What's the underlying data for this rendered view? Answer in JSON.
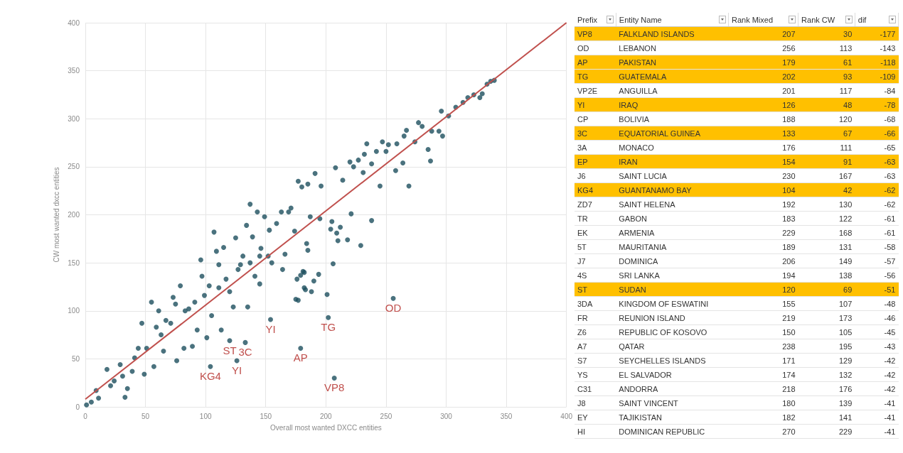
{
  "chart_data": [
    {
      "type": "scatter",
      "xlabel": "Overall most wanted DXCC entities",
      "ylabel": "CW most wanted dxcc entities",
      "xlim": [
        0,
        400
      ],
      "ylim": [
        0,
        400
      ],
      "xticks": [
        0,
        50,
        100,
        150,
        200,
        250,
        300,
        350,
        400
      ],
      "yticks": [
        0,
        50,
        100,
        150,
        200,
        250,
        300,
        350,
        400
      ],
      "grid": true,
      "series": [
        {
          "color": "#1d4f5e",
          "marker": "circle",
          "x": [
            1,
            5,
            11,
            18,
            24,
            29,
            33,
            35,
            39,
            44,
            47,
            49,
            55,
            57,
            59,
            61,
            65,
            67,
            73,
            75,
            76,
            79,
            82,
            86,
            89,
            93,
            96,
            97,
            101,
            103,
            105,
            107,
            109,
            111,
            113,
            115,
            120,
            123,
            125,
            129,
            131,
            134,
            135,
            139,
            141,
            145,
            146,
            152,
            153,
            155,
            159,
            163,
            164,
            166,
            169,
            174,
            175,
            176,
            181,
            182,
            9,
            21,
            31,
            41,
            51,
            63,
            71,
            83,
            91,
            99,
            111,
            117,
            127,
            137,
            145,
            137,
            143,
            149,
            177,
            180,
            185,
            171,
            191,
            196,
            208,
            205,
            214,
            220,
            223,
            227,
            231,
            234,
            232,
            238,
            242,
            247,
            245,
            250,
            252,
            259,
            258,
            265,
            267,
            269,
            264,
            274,
            277,
            280,
            285,
            287,
            288,
            294,
            296,
            297,
            302,
            308,
            314,
            318,
            323,
            328,
            330,
            334,
            337,
            340,
            184,
            185,
            179,
            182,
            190,
            194,
            183,
            188,
            177,
            201,
            206,
            204,
            209,
            212,
            210,
            218,
            221,
            229,
            238,
            187,
            195,
            104,
            120,
            126,
            133,
            154,
            179,
            202,
            207,
            256
          ],
          "values": [
            2,
            5,
            9,
            39,
            27,
            44,
            10,
            19,
            37,
            61,
            87,
            34,
            109,
            42,
            83,
            100,
            58,
            90,
            114,
            107,
            48,
            126,
            61,
            102,
            63,
            80,
            153,
            136,
            72,
            126,
            95,
            182,
            162,
            148,
            80,
            166,
            120,
            104,
            176,
            148,
            157,
            189,
            104,
            177,
            136,
            128,
            165,
            157,
            184,
            150,
            191,
            203,
            143,
            159,
            203,
            183,
            112,
            133,
            141,
            124,
            17,
            22,
            32,
            51,
            61,
            75,
            87,
            100,
            109,
            116,
            124,
            133,
            143,
            150,
            157,
            211,
            203,
            198,
            235,
            229,
            232,
            207,
            243,
            230,
            249,
            193,
            236,
            255,
            250,
            257,
            244,
            274,
            263,
            253,
            266,
            276,
            230,
            266,
            273,
            274,
            246,
            282,
            288,
            230,
            254,
            276,
            296,
            292,
            268,
            256,
            287,
            287,
            308,
            282,
            303,
            312,
            317,
            322,
            325,
            322,
            326,
            336,
            339,
            340,
            170,
            163,
            137,
            140,
            131,
            138,
            122,
            120,
            111,
            117,
            149,
            185,
            181,
            187,
            173,
            174,
            201,
            168,
            194,
            198,
            196,
            42,
            69,
            48,
            67,
            91,
            61,
            93,
            30,
            113
          ]
        },
        {
          "type": "line",
          "color": "#c0504d",
          "x": [
            0,
            400
          ],
          "values": [
            8,
            400
          ]
        }
      ],
      "annotations": [
        {
          "text": "KG4",
          "x": 104,
          "y": 42
        },
        {
          "text": "ST",
          "x": 120,
          "y": 69
        },
        {
          "text": "YI",
          "x": 126,
          "y": 48
        },
        {
          "text": "3C",
          "x": 133,
          "y": 67
        },
        {
          "text": "YI",
          "x": 154,
          "y": 91
        },
        {
          "text": "AP",
          "x": 179,
          "y": 61
        },
        {
          "text": "TG",
          "x": 202,
          "y": 93
        },
        {
          "text": "VP8",
          "x": 207,
          "y": 30
        },
        {
          "text": "OD",
          "x": 256,
          "y": 113
        }
      ]
    },
    {
      "type": "other",
      "categories": [
        "Prefix",
        "Entity Name",
        "Rank Mixed",
        "Rank CW",
        "dif"
      ],
      "colors": [
        "#ffc000",
        "#ffffff",
        "#ffc000",
        "#ffc000",
        "#ffffff",
        "#ffc000",
        "#ffffff",
        "#ffc000",
        "#ffffff",
        "#ffc000",
        "#ffffff",
        "#ffc000",
        "#ffffff",
        "#ffffff",
        "#ffffff",
        "#ffffff",
        "#ffffff",
        "#ffffff",
        "#ffc000",
        "#ffffff",
        "#ffffff",
        "#ffffff",
        "#ffffff",
        "#ffffff",
        "#ffffff",
        "#ffffff",
        "#ffffff",
        "#ffffff",
        "#ffffff"
      ],
      "cell_labels": [
        [
          "VP8",
          "FALKLAND ISLANDS",
          "207",
          "30",
          "-177"
        ],
        [
          "OD",
          "LEBANON",
          "256",
          "113",
          "-143"
        ],
        [
          "AP",
          "PAKISTAN",
          "179",
          "61",
          "-118"
        ],
        [
          "TG",
          "GUATEMALA",
          "202",
          "93",
          "-109"
        ],
        [
          "VP2E",
          "ANGUILLA",
          "201",
          "117",
          "-84"
        ],
        [
          "YI",
          "IRAQ",
          "126",
          "48",
          "-78"
        ],
        [
          "CP",
          "BOLIVIA",
          "188",
          "120",
          "-68"
        ],
        [
          "3C",
          "EQUATORIAL GUINEA",
          "133",
          "67",
          "-66"
        ],
        [
          "3A",
          "MONACO",
          "176",
          "111",
          "-65"
        ],
        [
          "EP",
          "IRAN",
          "154",
          "91",
          "-63"
        ],
        [
          "J6",
          "SAINT LUCIA",
          "230",
          "167",
          "-63"
        ],
        [
          "KG4",
          "GUANTANAMO BAY",
          "104",
          "42",
          "-62"
        ],
        [
          "ZD7",
          "SAINT HELENA",
          "192",
          "130",
          "-62"
        ],
        [
          "TR",
          "GABON",
          "183",
          "122",
          "-61"
        ],
        [
          "EK",
          "ARMENIA",
          "229",
          "168",
          "-61"
        ],
        [
          "5T",
          "MAURITANIA",
          "189",
          "131",
          "-58"
        ],
        [
          "J7",
          "DOMINICA",
          "206",
          "149",
          "-57"
        ],
        [
          "4S",
          "SRI LANKA",
          "194",
          "138",
          "-56"
        ],
        [
          "ST",
          "SUDAN",
          "120",
          "69",
          "-51"
        ],
        [
          "3DA",
          "KINGDOM OF ESWATINI",
          "155",
          "107",
          "-48"
        ],
        [
          "FR",
          "REUNION ISLAND",
          "219",
          "173",
          "-46"
        ],
        [
          "Z6",
          "REPUBLIC OF KOSOVO",
          "150",
          "105",
          "-45"
        ],
        [
          "A7",
          "QATAR",
          "238",
          "195",
          "-43"
        ],
        [
          "S7",
          "SEYCHELLES ISLANDS",
          "171",
          "129",
          "-42"
        ],
        [
          "YS",
          "EL SALVADOR",
          "174",
          "132",
          "-42"
        ],
        [
          "C31",
          "ANDORRA",
          "218",
          "176",
          "-42"
        ],
        [
          "J8",
          "SAINT VINCENT",
          "180",
          "139",
          "-41"
        ],
        [
          "EY",
          "TAJIKISTAN",
          "182",
          "141",
          "-41"
        ],
        [
          "HI",
          "DOMINICAN REPUBLIC",
          "270",
          "229",
          "-41"
        ]
      ]
    }
  ]
}
